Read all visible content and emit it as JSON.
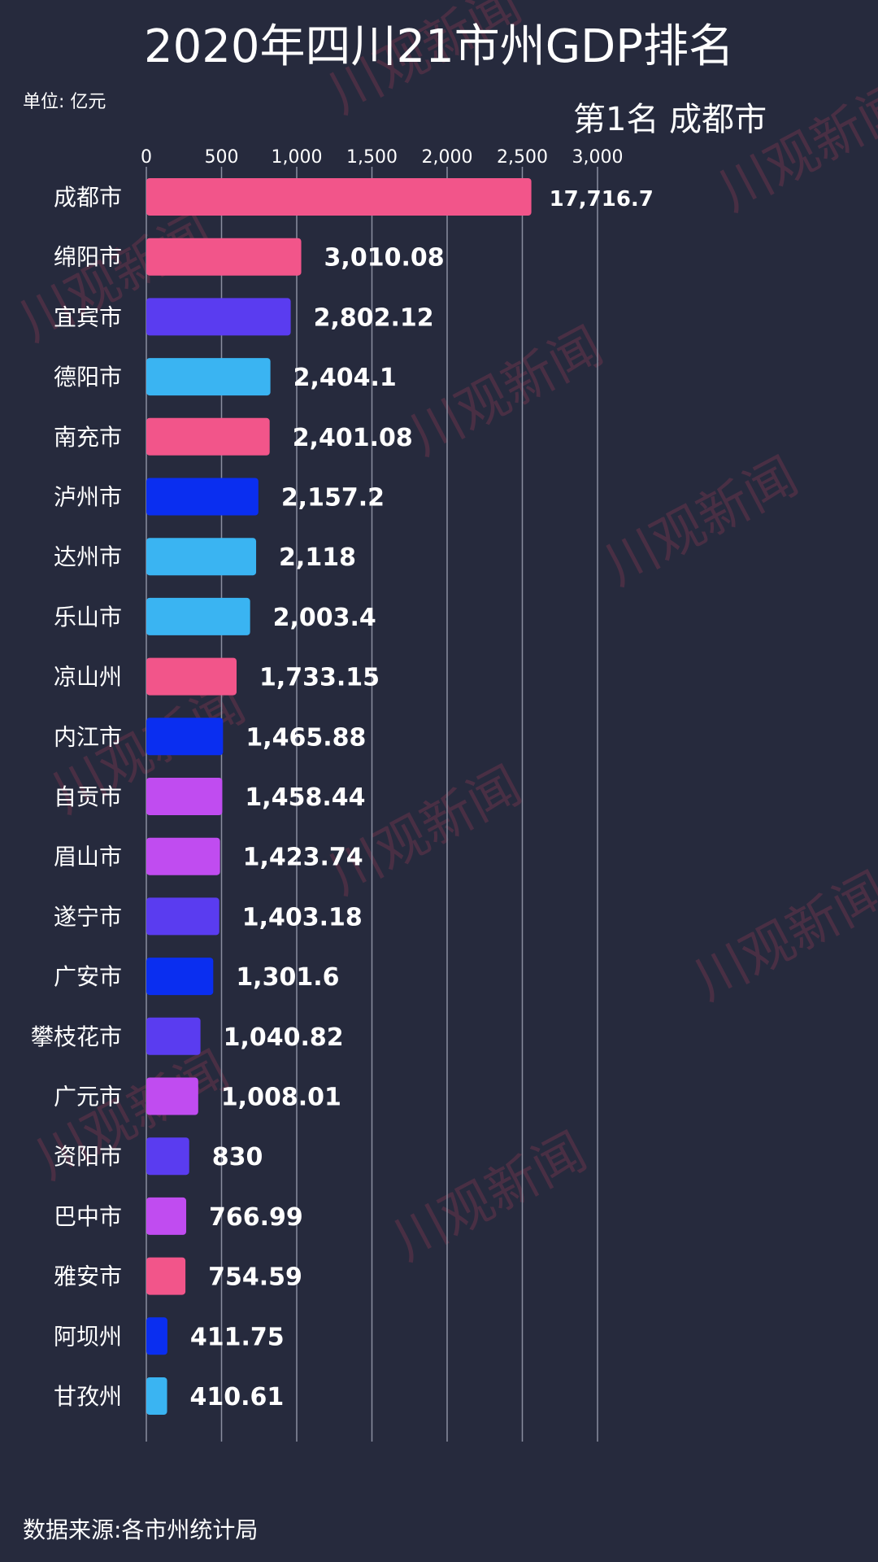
{
  "colors": {
    "background": "#262a3d",
    "pink": "#f2558a",
    "indigo": "#5a3cf0",
    "sky": "#3ab4f2",
    "blue": "#0a2ef0",
    "violet": "#c04cf0",
    "watermark": "#8b3a52"
  },
  "watermark_text": "川观新闻",
  "source": "数据来源:各市州统计局",
  "rank_label": "第1名 成都市",
  "chart_data": {
    "type": "bar",
    "orientation": "horizontal",
    "title": "2020年四川21市州GDP排名",
    "unit_label": "单位: 亿元",
    "xlim": [
      0,
      3000
    ],
    "ticks": [
      "0",
      "500",
      "1,000",
      "1,500",
      "2,000",
      "2,500",
      "3,000"
    ],
    "tick_values": [
      0,
      500,
      1000,
      1500,
      2000,
      2500,
      3000
    ],
    "grid": true,
    "categories": [
      "成都市",
      "绵阳市",
      "宜宾市",
      "德阳市",
      "南充市",
      "泸州市",
      "达州市",
      "乐山市",
      "凉山州",
      "内江市",
      "自贡市",
      "眉山市",
      "遂宁市",
      "广安市",
      "攀枝花市",
      "广元市",
      "资阳市",
      "巴中市",
      "雅安市",
      "阿坝州",
      "甘孜州"
    ],
    "values": [
      17716.7,
      3010.08,
      2802.12,
      2404.1,
      2401.08,
      2157.2,
      2118,
      2003.4,
      1733.15,
      1465.88,
      1458.44,
      1423.74,
      1403.18,
      1301.6,
      1040.82,
      1008.01,
      830,
      766.99,
      754.59,
      411.75,
      410.61
    ],
    "display_values": [
      2560,
      1030,
      960,
      825,
      820,
      745,
      730,
      690,
      600,
      510,
      505,
      490,
      485,
      445,
      360,
      345,
      285,
      265,
      260,
      140,
      138
    ],
    "value_labels": [
      "17,716.7",
      "3,010.08",
      "2,802.12",
      "2,404.1",
      "2,401.08",
      "2,157.2",
      "2,118",
      "2,003.4",
      "1,733.15",
      "1,465.88",
      "1,458.44",
      "1,423.74",
      "1,403.18",
      "1,301.6",
      "1,040.82",
      "1,008.01",
      "830",
      "766.99",
      "754.59",
      "411.75",
      "410.61"
    ],
    "bar_colors": [
      "#f2558a",
      "#f2558a",
      "#5a3cf0",
      "#3ab4f2",
      "#f2558a",
      "#0a2ef0",
      "#3ab4f2",
      "#3ab4f2",
      "#f2558a",
      "#0a2ef0",
      "#c04cf0",
      "#c04cf0",
      "#5a3cf0",
      "#0a2ef0",
      "#5a3cf0",
      "#c04cf0",
      "#5a3cf0",
      "#c04cf0",
      "#f2558a",
      "#0a2ef0",
      "#3ab4f2"
    ]
  }
}
